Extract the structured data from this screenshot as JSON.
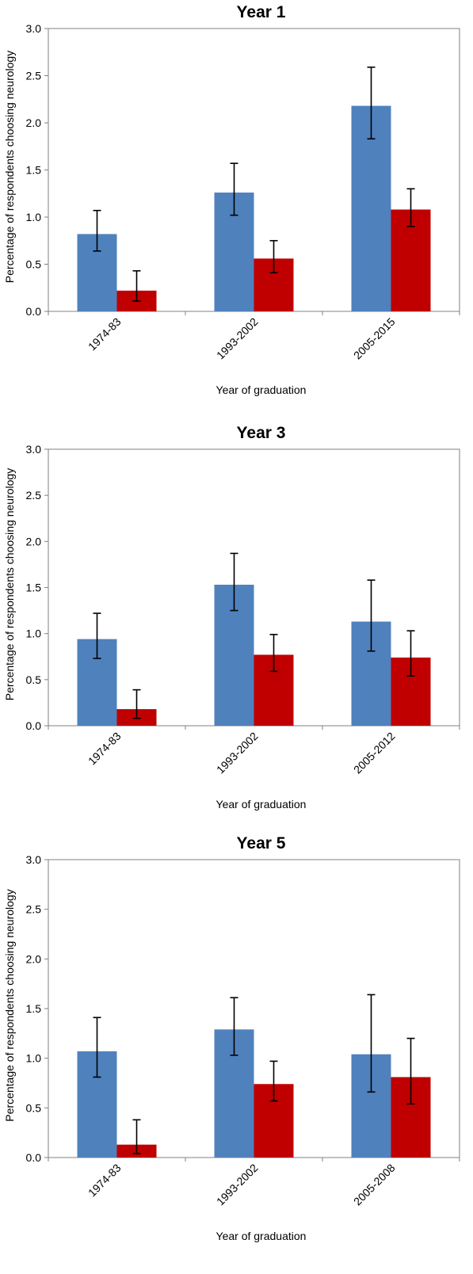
{
  "chart_data": [
    {
      "type": "bar",
      "title": "Year 1",
      "xlabel": "Year of graduation",
      "ylabel": "Percentage of respondents choosing neurology",
      "ylim": [
        0,
        3.0
      ],
      "yticks": [
        "0.0",
        "0.5",
        "1.0",
        "1.5",
        "2.0",
        "2.5",
        "3.0"
      ],
      "categories": [
        "1974-83",
        "1993-2002",
        "2005-2015"
      ],
      "grid": false,
      "legend": "none",
      "series": [
        {
          "color": "#4f81bd",
          "values": [
            0.82,
            1.26,
            2.18
          ],
          "error_low": [
            0.64,
            1.02,
            1.83
          ],
          "error_high": [
            1.07,
            1.57,
            2.59
          ]
        },
        {
          "color": "#c00000",
          "values": [
            0.22,
            0.56,
            1.08
          ],
          "error_low": [
            0.11,
            0.41,
            0.9
          ],
          "error_high": [
            0.43,
            0.75,
            1.3
          ]
        }
      ]
    },
    {
      "type": "bar",
      "title": "Year 3",
      "xlabel": "Year of graduation",
      "ylabel": "Percentage of respondents choosing neurology",
      "ylim": [
        0,
        3.0
      ],
      "yticks": [
        "0.0",
        "0.5",
        "1.0",
        "1.5",
        "2.0",
        "2.5",
        "3.0"
      ],
      "categories": [
        "1974-83",
        "1993-2002",
        "2005-2012"
      ],
      "grid": false,
      "legend": "none",
      "series": [
        {
          "color": "#4f81bd",
          "values": [
            0.94,
            1.53,
            1.13
          ],
          "error_low": [
            0.73,
            1.25,
            0.81
          ],
          "error_high": [
            1.22,
            1.87,
            1.58
          ]
        },
        {
          "color": "#c00000",
          "values": [
            0.18,
            0.77,
            0.74
          ],
          "error_low": [
            0.08,
            0.59,
            0.54
          ],
          "error_high": [
            0.39,
            0.99,
            1.03
          ]
        }
      ]
    },
    {
      "type": "bar",
      "title": "Year 5",
      "xlabel": "Year of graduation",
      "ylabel": "Percentage of respondents choosing neurology",
      "ylim": [
        0,
        3.0
      ],
      "yticks": [
        "0.0",
        "0.5",
        "1.0",
        "1.5",
        "2.0",
        "2.5",
        "3.0"
      ],
      "categories": [
        "1974-83",
        "1993-2002",
        "2005-2008"
      ],
      "grid": false,
      "legend": "none",
      "series": [
        {
          "color": "#4f81bd",
          "values": [
            1.07,
            1.29,
            1.04
          ],
          "error_low": [
            0.81,
            1.03,
            0.66
          ],
          "error_high": [
            1.41,
            1.61,
            1.64
          ]
        },
        {
          "color": "#c00000",
          "values": [
            0.13,
            0.74,
            0.81
          ],
          "error_low": [
            0.04,
            0.57,
            0.54
          ],
          "error_high": [
            0.38,
            0.97,
            1.2
          ]
        }
      ]
    }
  ]
}
